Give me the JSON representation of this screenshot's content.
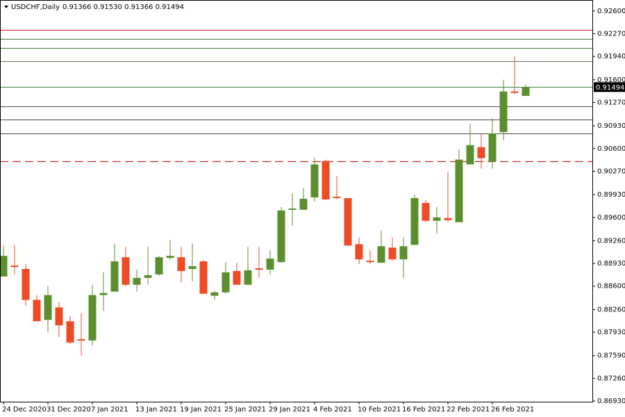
{
  "chart_data": {
    "type": "candlestick",
    "title": "USDCHF,Daily",
    "subtitle": "0.91366 0.91530 0.91366 0.91494",
    "current_price_label": "0.91494",
    "categories": [
      "24 Dec 2020",
      null,
      null,
      null,
      "31 Dec 2020",
      null,
      null,
      null,
      "7 Jan 2021",
      null,
      null,
      null,
      "13 Jan 2021",
      null,
      null,
      null,
      "19 Jan 2021",
      null,
      null,
      null,
      "25 Jan 2021",
      null,
      null,
      null,
      "29 Jan 2021",
      null,
      null,
      null,
      "4 Feb 2021",
      null,
      null,
      null,
      "10 Feb 2021",
      null,
      null,
      null,
      "16 Feb 2021",
      null,
      null,
      null,
      "22 Feb 2021",
      null,
      null,
      null,
      "26 Feb 2021",
      null,
      null,
      null
    ],
    "open": [
      0.8874,
      0.889,
      0.8885,
      0.884,
      0.8811,
      0.8829,
      0.8809,
      0.8783,
      0.8781,
      0.8847,
      0.8852,
      0.8902,
      0.8862,
      0.8872,
      0.8877,
      0.8901,
      0.8902,
      0.8885,
      0.8896,
      0.8846,
      0.8851,
      0.8882,
      0.8862,
      0.8886,
      0.8884,
      0.8895,
      0.8971,
      0.8971,
      0.8989,
      0.9042,
      0.899,
      0.8988,
      0.8921,
      0.8897,
      0.8894,
      0.8916,
      0.8899,
      0.892,
      0.8981,
      0.8955,
      0.8959,
      0.8953,
      0.9037,
      0.9062,
      0.9041,
      0.9084,
      0.9143,
      0.91366
    ],
    "high": [
      0.892,
      0.892,
      0.8892,
      0.8847,
      0.886,
      0.8837,
      0.8816,
      0.8821,
      0.8862,
      0.888,
      0.8922,
      0.8917,
      0.8884,
      0.8917,
      0.8904,
      0.8927,
      0.8917,
      0.8922,
      0.8898,
      0.8853,
      0.8895,
      0.8894,
      0.8917,
      0.8917,
      0.8912,
      0.8975,
      0.8995,
      0.9003,
      0.9046,
      0.9044,
      0.902,
      0.8988,
      0.8931,
      0.8912,
      0.8941,
      0.8931,
      0.8931,
      0.8993,
      0.8985,
      0.8975,
      0.9026,
      0.9059,
      0.9096,
      0.9081,
      0.9104,
      0.916,
      0.9194,
      0.9153
    ],
    "low": [
      0.8874,
      0.8877,
      0.8832,
      0.8809,
      0.8793,
      0.8786,
      0.8776,
      0.8759,
      0.8774,
      0.8824,
      0.8852,
      0.886,
      0.8852,
      0.8862,
      0.8875,
      0.8898,
      0.8865,
      0.8867,
      0.8849,
      0.884,
      0.8849,
      0.8862,
      0.8862,
      0.8872,
      0.8877,
      0.8894,
      0.8948,
      0.8971,
      0.8983,
      0.8986,
      0.8986,
      0.8919,
      0.8892,
      0.8892,
      0.8894,
      0.8897,
      0.8872,
      0.892,
      0.8953,
      0.8936,
      0.8953,
      0.8953,
      0.9037,
      0.9031,
      0.9031,
      0.9072,
      0.9139,
      0.91366
    ],
    "close": [
      0.8904,
      0.8888,
      0.884,
      0.8809,
      0.8847,
      0.8803,
      0.8778,
      0.8781,
      0.8847,
      0.885,
      0.8896,
      0.8862,
      0.8872,
      0.8876,
      0.8902,
      0.8904,
      0.8882,
      0.8889,
      0.8849,
      0.8851,
      0.888,
      0.8862,
      0.8883,
      0.8884,
      0.89,
      0.897,
      0.8973,
      0.8987,
      0.9037,
      0.8986,
      0.8988,
      0.8919,
      0.8899,
      0.8895,
      0.8918,
      0.8899,
      0.8918,
      0.8988,
      0.8955,
      0.896,
      0.8956,
      0.9044,
      0.9065,
      0.9046,
      0.9082,
      0.9143,
      0.9141,
      0.91494
    ],
    "up_color": "#5b8f2e",
    "down_color": "#f04a24",
    "levels": [
      {
        "value": 0.9233,
        "color": "#d42020",
        "style": "solid"
      },
      {
        "value": 0.9219,
        "color": "#3d7a3d",
        "style": "solid"
      },
      {
        "value": 0.9206,
        "color": "#3d7a3d",
        "style": "solid"
      },
      {
        "value": 0.9187,
        "color": "#4f7a4f",
        "style": "solid"
      },
      {
        "value": 0.91494,
        "color": "#3d8a3d",
        "style": "solid"
      },
      {
        "value": 0.9121,
        "color": "#4a4a4a",
        "style": "solid"
      },
      {
        "value": 0.9102,
        "color": "#4a4a4a",
        "style": "solid"
      },
      {
        "value": 0.9082,
        "color": "#4a4a4a",
        "style": "solid"
      },
      {
        "value": 0.9042,
        "color": "#d42020",
        "style": "dashed"
      }
    ],
    "ylim": [
      0.8692,
      0.9276
    ],
    "yticks": [
      {
        "value": 0.926,
        "label": "0.92600"
      },
      {
        "value": 0.9227,
        "label": "0.92270"
      },
      {
        "value": 0.9194,
        "label": "0.91940"
      },
      {
        "value": 0.916,
        "label": "0.91600"
      },
      {
        "value": 0.9127,
        "label": "0.91270"
      },
      {
        "value": 0.9093,
        "label": "0.90930"
      },
      {
        "value": 0.906,
        "label": "0.90600"
      },
      {
        "value": 0.9027,
        "label": "0.90270"
      },
      {
        "value": 0.8993,
        "label": "0.89930"
      },
      {
        "value": 0.896,
        "label": "0.89600"
      },
      {
        "value": 0.8926,
        "label": "0.89260"
      },
      {
        "value": 0.8893,
        "label": "0.88930"
      },
      {
        "value": 0.886,
        "label": "0.88600"
      },
      {
        "value": 0.8826,
        "label": "0.88260"
      },
      {
        "value": 0.8793,
        "label": "0.87930"
      },
      {
        "value": 0.8759,
        "label": "0.87590"
      },
      {
        "value": 0.8726,
        "label": "0.87260"
      },
      {
        "value": 0.8693,
        "label": "0.86930"
      }
    ]
  }
}
